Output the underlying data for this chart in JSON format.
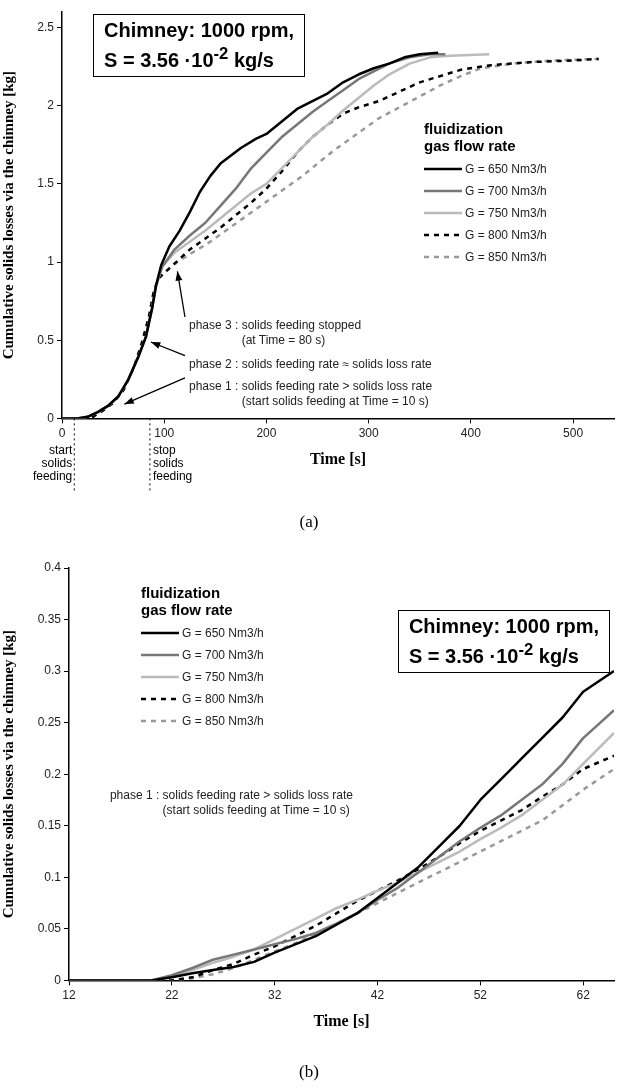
{
  "chart_data": [
    {
      "type": "line",
      "title": "Chimney: 1000 rpm,\nS = 3.56 ·10$^{-2}$ kg/s",
      "xlabel": "Time [s]",
      "ylabel": "Cumulative solids losses via the chimney [kg]",
      "legend_title": "fluidization gas flow rate",
      "legend": "right",
      "grid": false,
      "marker": "none",
      "xlim": [
        0,
        540
      ],
      "xticks": [
        0,
        100,
        200,
        300,
        400,
        500
      ],
      "ylim": [
        0,
        2.6
      ],
      "yticks": [
        0,
        0.5,
        1,
        1.5,
        2,
        2.5
      ],
      "ref_lines": [
        {
          "axis": "x",
          "value": 12,
          "label": "start solids feeding",
          "line_style": "dotted"
        },
        {
          "axis": "x",
          "value": 86,
          "label": "stop solids feeding",
          "line_style": "dotted"
        }
      ],
      "annotations": [
        "phase 3 : solids feeding stopped\n(at Time = 80 s)",
        "phase 2 : solids feeding rate ≈ solids loss rate",
        "phase 1 : solids feeding rate > solids loss rate\n(start solids feeding at Time = 10 s)",
        "(a)"
      ],
      "series": [
        {
          "name": "G = 650 Nm3/h",
          "color": "#000000",
          "line_style": "solid",
          "x": [
            0,
            15,
            25,
            35,
            45,
            55,
            65,
            75,
            82,
            88,
            92,
            97,
            105,
            115,
            125,
            135,
            145,
            155,
            165,
            175,
            190,
            200,
            215,
            230,
            245,
            260,
            275,
            290,
            305,
            320,
            335,
            350,
            368
          ],
          "values": [
            0,
            0,
            0.01,
            0.04,
            0.08,
            0.14,
            0.25,
            0.4,
            0.52,
            0.7,
            0.85,
            0.98,
            1.1,
            1.2,
            1.32,
            1.45,
            1.55,
            1.63,
            1.68,
            1.73,
            1.79,
            1.82,
            1.9,
            1.98,
            2.03,
            2.08,
            2.15,
            2.2,
            2.24,
            2.27,
            2.31,
            2.33,
            2.34
          ]
        },
        {
          "name": "G = 700 Nm3/h",
          "color": "#777777",
          "line_style": "solid",
          "x": [
            0,
            15,
            25,
            35,
            45,
            55,
            65,
            75,
            82,
            88,
            92,
            98,
            110,
            125,
            140,
            155,
            170,
            185,
            200,
            215,
            230,
            245,
            260,
            275,
            290,
            305,
            320,
            340,
            360,
            375
          ],
          "values": [
            0,
            0,
            0.01,
            0.04,
            0.08,
            0.14,
            0.25,
            0.4,
            0.52,
            0.7,
            0.85,
            0.97,
            1.08,
            1.17,
            1.25,
            1.36,
            1.47,
            1.6,
            1.7,
            1.8,
            1.88,
            1.96,
            2.03,
            2.1,
            2.17,
            2.22,
            2.27,
            2.31,
            2.33,
            2.33
          ]
        },
        {
          "name": "G = 750 Nm3/h",
          "color": "#bbbbbb",
          "line_style": "solid",
          "x": [
            0,
            15,
            25,
            35,
            45,
            55,
            65,
            75,
            82,
            88,
            92,
            98,
            110,
            125,
            140,
            155,
            170,
            185,
            200,
            215,
            230,
            245,
            260,
            275,
            290,
            305,
            320,
            340,
            360,
            380,
            418
          ],
          "values": [
            0,
            0,
            0.01,
            0.04,
            0.08,
            0.14,
            0.25,
            0.4,
            0.52,
            0.7,
            0.85,
            0.97,
            1.06,
            1.13,
            1.2,
            1.28,
            1.36,
            1.44,
            1.5,
            1.6,
            1.7,
            1.8,
            1.88,
            1.97,
            2.05,
            2.13,
            2.2,
            2.27,
            2.31,
            2.32,
            2.33
          ]
        },
        {
          "name": "G = 800 Nm3/h",
          "color": "#000000",
          "line_style": "dashed",
          "x": [
            0,
            20,
            30,
            40,
            50,
            60,
            70,
            78,
            85,
            90,
            95,
            105,
            115,
            125,
            140,
            155,
            170,
            185,
            200,
            215,
            230,
            245,
            260,
            275,
            290,
            310,
            330,
            350,
            370,
            390,
            420,
            460,
            500,
            525
          ],
          "values": [
            0,
            0,
            0.01,
            0.05,
            0.1,
            0.18,
            0.32,
            0.48,
            0.65,
            0.82,
            0.9,
            0.96,
            1.02,
            1.08,
            1.15,
            1.22,
            1.3,
            1.38,
            1.47,
            1.58,
            1.7,
            1.8,
            1.88,
            1.95,
            1.99,
            2.03,
            2.09,
            2.15,
            2.19,
            2.23,
            2.26,
            2.28,
            2.29,
            2.3
          ]
        },
        {
          "name": "G = 850 Nm3/h",
          "color": "#999999",
          "line_style": "dashed",
          "x": [
            0,
            20,
            30,
            40,
            50,
            60,
            70,
            78,
            85,
            90,
            95,
            105,
            115,
            130,
            145,
            160,
            175,
            190,
            205,
            220,
            235,
            250,
            265,
            280,
            295,
            310,
            330,
            350,
            370,
            390,
            410,
            440,
            480,
            525
          ],
          "values": [
            0,
            0,
            0.01,
            0.05,
            0.1,
            0.18,
            0.32,
            0.48,
            0.65,
            0.82,
            0.9,
            0.96,
            1.01,
            1.07,
            1.13,
            1.2,
            1.27,
            1.34,
            1.41,
            1.48,
            1.55,
            1.63,
            1.71,
            1.78,
            1.85,
            1.92,
            1.99,
            2.06,
            2.13,
            2.19,
            2.24,
            2.27,
            2.29,
            2.3
          ]
        }
      ]
    },
    {
      "type": "line",
      "title": "Chimney: 1000 rpm,\nS = 3.56 ·10$^{-2}$ kg/s",
      "xlabel": "Time [s]",
      "ylabel": "Cumulative solids losses via the chimney [kg]",
      "legend_title": "fluidization gas flow rate",
      "legend": "top left",
      "grid": false,
      "marker": "none",
      "xlim": [
        12,
        65
      ],
      "xticks": [
        12,
        22,
        32,
        42,
        52,
        62
      ],
      "ylim": [
        0,
        0.4
      ],
      "yticks": [
        0,
        0.05,
        0.1,
        0.15,
        0.2,
        0.25,
        0.3,
        0.35,
        0.4
      ],
      "annotations": [
        "phase 1 : solids feeding rate > solids loss rate\n(start solids feeding at Time = 10 s)",
        "(b)"
      ],
      "series": [
        {
          "name": "G = 650 Nm3/h",
          "color": "#000000",
          "line_style": "solid",
          "x": [
            12,
            20,
            22,
            24,
            26,
            28,
            30,
            32,
            34,
            36,
            38,
            40,
            42,
            44,
            46,
            48,
            50,
            52,
            54,
            56,
            58,
            60,
            62,
            65
          ],
          "values": [
            0,
            0,
            0.003,
            0.007,
            0.01,
            0.013,
            0.018,
            0.027,
            0.035,
            0.043,
            0.054,
            0.065,
            0.08,
            0.095,
            0.11,
            0.13,
            0.15,
            0.175,
            0.195,
            0.215,
            0.235,
            0.255,
            0.28,
            0.3
          ]
        },
        {
          "name": "G = 700 Nm3/h",
          "color": "#777777",
          "line_style": "solid",
          "x": [
            12,
            20,
            22,
            24,
            26,
            28,
            30,
            32,
            34,
            36,
            38,
            40,
            42,
            44,
            46,
            48,
            50,
            52,
            54,
            56,
            58,
            60,
            62,
            65
          ],
          "values": [
            0,
            0,
            0.005,
            0.012,
            0.02,
            0.025,
            0.03,
            0.035,
            0.04,
            0.046,
            0.055,
            0.065,
            0.078,
            0.09,
            0.105,
            0.12,
            0.135,
            0.148,
            0.16,
            0.175,
            0.19,
            0.21,
            0.235,
            0.262
          ]
        },
        {
          "name": "G = 750 Nm3/h",
          "color": "#bbbbbb",
          "line_style": "solid",
          "x": [
            12,
            20,
            22,
            24,
            26,
            28,
            30,
            32,
            34,
            36,
            38,
            40,
            42,
            44,
            46,
            48,
            50,
            52,
            54,
            56,
            58,
            60,
            62,
            65
          ],
          "values": [
            0,
            0,
            0.004,
            0.01,
            0.017,
            0.023,
            0.03,
            0.04,
            0.05,
            0.06,
            0.07,
            0.078,
            0.087,
            0.095,
            0.105,
            0.115,
            0.125,
            0.137,
            0.148,
            0.16,
            0.175,
            0.19,
            0.21,
            0.24
          ]
        },
        {
          "name": "G = 800 Nm3/h",
          "color": "#000000",
          "line_style": "dashed",
          "x": [
            12,
            22,
            24,
            26,
            28,
            30,
            32,
            34,
            36,
            38,
            40,
            42,
            44,
            46,
            48,
            50,
            52,
            54,
            56,
            58,
            60,
            62,
            65
          ],
          "values": [
            0,
            0,
            0.003,
            0.01,
            0.016,
            0.025,
            0.033,
            0.043,
            0.053,
            0.065,
            0.077,
            0.087,
            0.097,
            0.108,
            0.12,
            0.133,
            0.145,
            0.155,
            0.165,
            0.178,
            0.19,
            0.205,
            0.218
          ]
        },
        {
          "name": "G = 850 Nm3/h",
          "color": "#999999",
          "line_style": "dashed",
          "x": [
            12,
            22,
            24,
            26,
            28,
            30,
            32,
            34,
            36,
            38,
            40,
            42,
            44,
            46,
            48,
            50,
            52,
            54,
            56,
            58,
            60,
            62,
            65
          ],
          "values": [
            0,
            0,
            0.002,
            0.006,
            0.012,
            0.02,
            0.028,
            0.036,
            0.045,
            0.055,
            0.065,
            0.075,
            0.085,
            0.095,
            0.105,
            0.115,
            0.125,
            0.135,
            0.145,
            0.155,
            0.17,
            0.185,
            0.205
          ]
        }
      ]
    }
  ]
}
